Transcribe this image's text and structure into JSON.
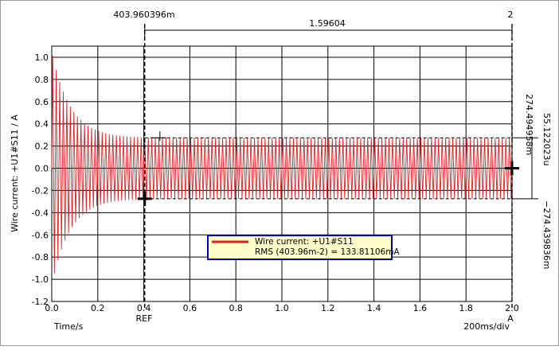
{
  "chart_data": {
    "type": "line",
    "xlabel": "Time/s",
    "ylabel": "Wire current: +U1#S11 / A",
    "xlim": [
      0,
      2.0
    ],
    "ylim": [
      -1.2,
      1.1
    ],
    "xticks": [
      "0.0",
      "0.2",
      "0.4",
      "0.6",
      "0.8",
      "1.0",
      "1.2",
      "1.4",
      "1.6",
      "1.8",
      "2.0"
    ],
    "yticks": [
      "1.0",
      "0.8",
      "0.6",
      "0.4",
      "0.2",
      "0.0",
      "-0.2",
      "-0.4",
      "-0.6",
      "-0.8",
      "-1.0",
      "-1.2"
    ],
    "grid": true,
    "x_div_label": "200ms/div",
    "series": [
      {
        "name": "Wire current: +U1#S11",
        "color": "#e02020",
        "envelope": {
          "initial_peak": 1.05,
          "steady_peak": 0.2745,
          "decay_time_s": 0.08
        },
        "cycles": 130
      }
    ],
    "cursors": {
      "ref": {
        "x": 0.40396,
        "label": "REF",
        "top_label": "403.960396m"
      },
      "a": {
        "x": 2.0,
        "label": "A",
        "top_label": "2"
      },
      "delta_label": "1.59604",
      "y_upper_label": "274.494958m",
      "y_lower_label": "−274.439836m",
      "y_delta_label": "55.122023u",
      "y_upper": 0.2745,
      "y_lower": -0.2744
    },
    "legend": {
      "series": "Wire current: +U1#S11",
      "stat": "RMS (403.96m-2) = 133.81106mA"
    },
    "colors": {
      "trace": "#e02020",
      "grid": "#000000",
      "legend_bg": "#ffffc8",
      "legend_border": "#0000c0"
    }
  }
}
